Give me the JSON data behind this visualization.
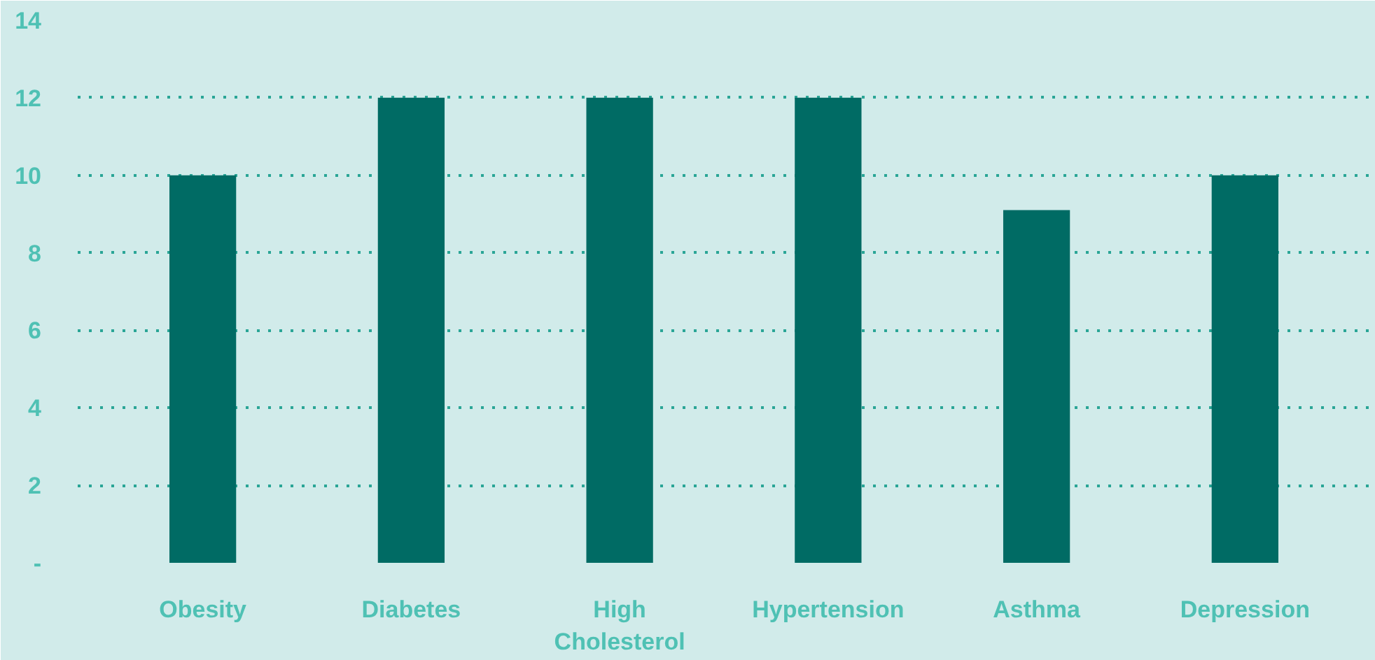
{
  "chart_data": {
    "type": "bar",
    "categories": [
      "Obesity",
      "Diabetes",
      "High Cholesterol",
      "Hypertension",
      "Asthma",
      "Depression"
    ],
    "values": [
      10,
      12,
      12,
      12,
      9.1,
      10
    ],
    "color": "#006b64",
    "ylim": [
      0,
      14
    ],
    "yticks": [
      {
        "value": 0,
        "label": "-"
      },
      2,
      4,
      6,
      8,
      10,
      12,
      14
    ],
    "grid": "y"
  }
}
